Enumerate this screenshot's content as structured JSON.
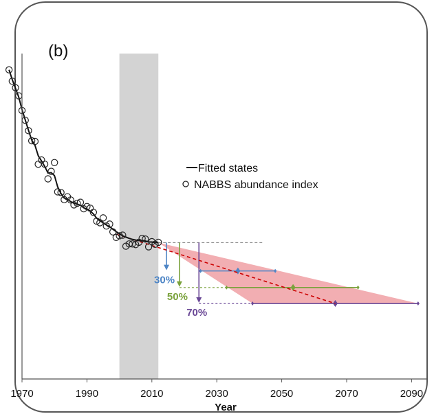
{
  "chart_data": {
    "type": "line",
    "panel_label": "(b)",
    "xlabel": "Year",
    "ylabel": "",
    "xlim": [
      1970,
      2095
    ],
    "ylim": [
      0,
      100
    ],
    "x_ticks": [
      "1970",
      "1990",
      "2010",
      "2030",
      "2050",
      "2070",
      "2090"
    ],
    "grid": false,
    "legend_position": "center-right",
    "legend": {
      "fitted_label": "Fitted states",
      "observed_label": "NABBS abundance index"
    },
    "highlight_band": {
      "from": 2000,
      "to": 2012,
      "color": "#d3d3d3"
    },
    "colors": {
      "fitted": "#111111",
      "observed_marker": "#222222",
      "trend": "#cc0000",
      "cone_fill": "#f0a0a4",
      "reference": "#7a7a7a",
      "30": "#4f86c6",
      "50": "#7aa23c",
      "70": "#6a4896"
    },
    "series": [
      {
        "name": "NABBS abundance index",
        "kind": "points",
        "x": [
          1966,
          1967,
          1968,
          1969,
          1970,
          1971,
          1972,
          1973,
          1974,
          1975,
          1976,
          1977,
          1978,
          1979,
          1980,
          1981,
          1982,
          1983,
          1984,
          1985,
          1986,
          1987,
          1988,
          1989,
          1990,
          1991,
          1992,
          1993,
          1994,
          1995,
          1996,
          1997,
          1998,
          1999,
          2000,
          2001,
          2002,
          2003,
          2004,
          2005,
          2006,
          2007,
          2008,
          2009,
          2010,
          2011,
          2012
        ],
        "y": [
          95,
          91.5,
          89.5,
          87,
          82.5,
          79.5,
          76.3,
          73.2,
          73,
          66,
          67.3,
          66,
          61.5,
          63.8,
          66.5,
          57.5,
          57.3,
          55.1,
          56,
          55,
          53.5,
          54,
          54.3,
          52.3,
          53,
          52.5,
          51.2,
          48.5,
          48,
          49.5,
          47,
          47.6,
          45.2,
          43.5,
          44,
          44.2,
          40.8,
          41.5,
          41.5,
          41.3,
          42,
          43.2,
          43,
          40.6,
          42.2,
          41.4,
          42
        ]
      },
      {
        "name": "Fitted states",
        "kind": "line",
        "x": [
          1966,
          1967,
          1968,
          1969,
          1970,
          1971,
          1972,
          1973,
          1974,
          1975,
          1976,
          1977,
          1978,
          1979,
          1980,
          1981,
          1982,
          1983,
          1984,
          1985,
          1986,
          1987,
          1988,
          1989,
          1990,
          1991,
          1992,
          1993,
          1994,
          1995,
          1996,
          1997,
          1998,
          1999,
          2000,
          2001,
          2002,
          2003,
          2004,
          2005,
          2006,
          2007,
          2008,
          2009,
          2010,
          2011,
          2012
        ],
        "y": [
          95,
          92,
          89.3,
          86.6,
          82.8,
          79.6,
          76.4,
          73.4,
          71.8,
          68.6,
          67,
          65.3,
          63.3,
          63.4,
          62.5,
          59,
          57,
          55.6,
          55.2,
          54.5,
          54,
          53.7,
          53.4,
          52.6,
          52.2,
          51.6,
          50.7,
          49.4,
          48.6,
          48,
          47.3,
          46.8,
          46,
          45.3,
          44.6,
          44,
          43.6,
          43.2,
          42.9,
          42.7,
          42.5,
          42.6,
          42.4,
          42.1,
          42.1,
          41.9,
          41.9
        ]
      }
    ],
    "trend": {
      "from": [
        1999,
        44.5
      ],
      "to": [
        2066.5,
        23.2
      ],
      "style": "dashed"
    },
    "reference_level": {
      "y": 41.9,
      "x_from": 2012,
      "x_to": 2044
    },
    "projection_cone": [
      [
        2012,
        41.9
      ],
      [
        2041,
        23.2
      ],
      [
        2092,
        23.2
      ]
    ],
    "decline_levels": [
      {
        "label": "30%",
        "y": 33.2,
        "drop_x": 2014.5,
        "dash_from": 2025,
        "x_low": 2025,
        "x_mid": 2036.5,
        "x_high": 2048
      },
      {
        "label": "50%",
        "y": 28.1,
        "drop_x": 2018.5,
        "dash_from": 2018.5,
        "x_low": 2033,
        "x_mid": 2053.5,
        "x_high": 2073.5
      },
      {
        "label": "70%",
        "y": 23.2,
        "drop_x": 2024.5,
        "dash_from": 2024.5,
        "x_low": 2041,
        "x_mid": 2066.5,
        "x_high": 2092
      }
    ]
  }
}
